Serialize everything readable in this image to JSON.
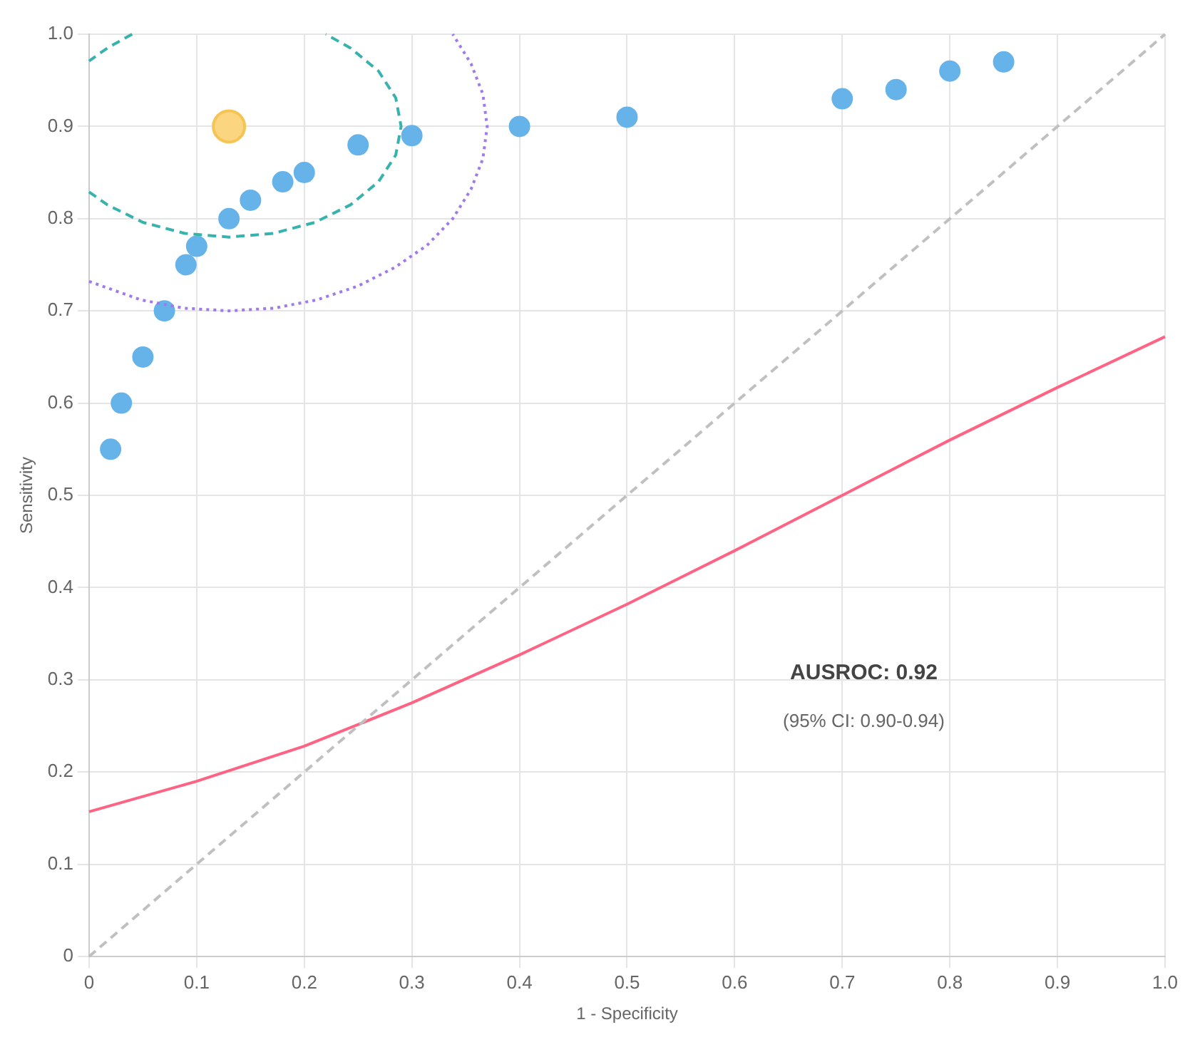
{
  "chart_data": {
    "type": "scatter",
    "xlabel": "1 - Specificity",
    "ylabel": "Sensitivity",
    "xlim": [
      0,
      1
    ],
    "ylim": [
      0,
      1
    ],
    "xticks": [
      0,
      0.1,
      0.2,
      0.3,
      0.4,
      0.5,
      0.6,
      0.7,
      0.8,
      0.9,
      {
        "value": 1,
        "label": "1.0"
      }
    ],
    "yticks": [
      0,
      0.1,
      0.2,
      0.3,
      0.4,
      0.5,
      0.6,
      0.7,
      0.8,
      0.9,
      {
        "value": 1,
        "label": "1.0"
      }
    ],
    "grid": true,
    "legend": false,
    "marker": "circle",
    "annotations": [
      "AUSROC: 0.92",
      "(95% CI: 0.90-0.94)"
    ],
    "series": [
      {
        "type": "line",
        "color": "#c0c0c0",
        "line_style": "dashed",
        "marker": "none",
        "x": [
          0,
          1
        ],
        "values": [
          0,
          1
        ]
      },
      {
        "type": "line",
        "color": "#9f7aea",
        "line_style": "dotted",
        "marker": "none",
        "x": [
          0,
          0.048,
          0.088,
          0.13,
          0.172,
          0.212,
          0.25,
          0.284,
          0.314,
          0.338,
          0.355,
          0.366,
          0.37,
          0.366,
          0.355,
          0.338
        ],
        "values": [
          0.732,
          0.712,
          0.703,
          0.7,
          0.703,
          0.712,
          0.727,
          0.747,
          0.771,
          0.8,
          0.832,
          0.865,
          0.9,
          0.935,
          0.968,
          1.0
        ]
      },
      {
        "type": "line",
        "color": "#38b2ac",
        "line_style": "dashed",
        "marker": "none",
        "x": [
          0.04,
          0.017,
          0,
          null,
          0,
          0.017,
          0.05,
          0.089,
          0.13,
          0.171,
          0.21,
          0.243,
          0.269,
          0.285,
          0.29,
          0.285,
          0.269,
          0.243,
          0.22
        ],
        "values": [
          1.0,
          0.985,
          0.971,
          null,
          0.829,
          0.815,
          0.796,
          0.784,
          0.78,
          0.784,
          0.796,
          0.815,
          0.84,
          0.869,
          0.9,
          0.931,
          0.96,
          0.985,
          1.0
        ]
      },
      {
        "type": "line",
        "color": "#ff6384",
        "line_style": "solid",
        "marker": "none",
        "x": [
          0,
          0.1,
          0.2,
          0.3,
          0.4,
          0.5,
          0.6,
          0.7,
          0.8,
          0.9,
          1
        ],
        "values": [
          0.157,
          0.19,
          0.228,
          0.275,
          0.327,
          0.382,
          0.44,
          0.5,
          0.56,
          0.617,
          0.672
        ]
      },
      {
        "color": "#66b3ea",
        "x": [
          0.02,
          0.03,
          0.05,
          0.07,
          0.09,
          0.1,
          0.13,
          0.15,
          0.18,
          0.2,
          0.25,
          0.3,
          0.4,
          0.5,
          0.7,
          0.75,
          0.8,
          0.85
        ],
        "values": [
          0.55,
          0.6,
          0.65,
          0.7,
          0.75,
          0.77,
          0.8,
          0.82,
          0.84,
          0.85,
          0.88,
          0.89,
          0.9,
          0.91,
          0.93,
          0.94,
          0.96,
          0.97
        ]
      },
      {
        "color": "#fcd581",
        "x": [
          0.13
        ],
        "values": [
          0.9
        ]
      }
    ]
  }
}
